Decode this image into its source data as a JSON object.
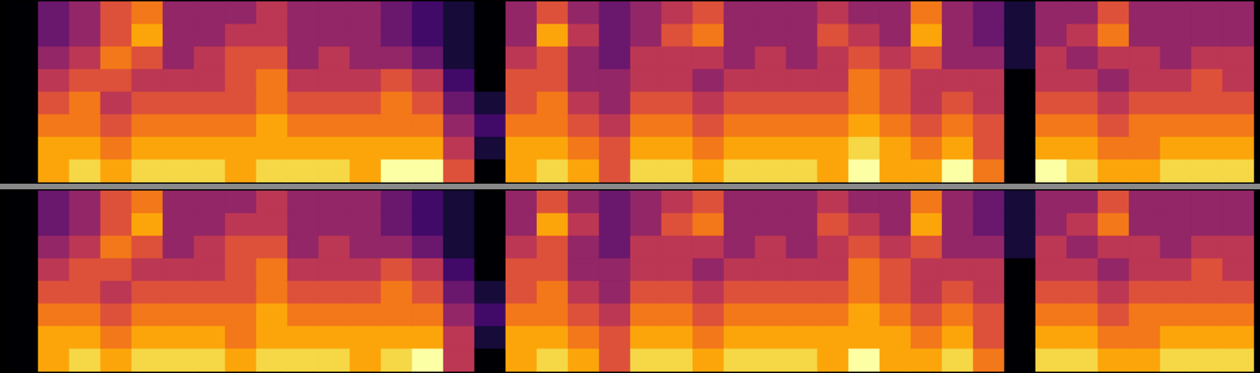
{
  "chart_data": [
    {
      "type": "heatmap",
      "color": "inferno",
      "color_range": [
        0,
        10
      ],
      "tick_labels": false,
      "cells": [
        [
          0,
          0,
          0,
          0,
          0,
          0,
          0,
          0
        ],
        [
          3,
          3,
          4,
          5,
          6,
          7,
          8,
          8
        ],
        [
          4,
          4,
          5,
          6,
          7,
          7,
          8,
          9
        ],
        [
          6,
          6,
          7,
          6,
          5,
          6,
          7,
          8
        ],
        [
          7,
          8,
          6,
          5,
          6,
          7,
          8,
          9
        ],
        [
          4,
          4,
          4,
          5,
          6,
          7,
          8,
          9
        ],
        [
          4,
          4,
          5,
          5,
          6,
          7,
          8,
          9
        ],
        [
          4,
          5,
          6,
          6,
          6,
          7,
          8,
          8
        ],
        [
          5,
          5,
          6,
          7,
          7,
          8,
          8,
          9
        ],
        [
          4,
          4,
          4,
          5,
          6,
          7,
          8,
          9
        ],
        [
          4,
          4,
          5,
          5,
          6,
          7,
          8,
          9
        ],
        [
          4,
          4,
          4,
          5,
          6,
          7,
          8,
          8
        ],
        [
          3,
          3,
          4,
          6,
          7,
          7,
          8,
          10
        ],
        [
          2,
          2,
          3,
          5,
          6,
          7,
          8,
          10
        ],
        [
          1,
          1,
          1,
          2,
          3,
          4,
          5,
          6
        ],
        [
          0,
          0,
          0,
          0,
          1,
          2,
          1,
          0
        ],
        [
          4,
          4,
          5,
          6,
          6,
          7,
          8,
          8
        ],
        [
          6,
          8,
          6,
          6,
          7,
          7,
          8,
          9
        ],
        [
          4,
          5,
          4,
          4,
          5,
          6,
          7,
          8
        ],
        [
          3,
          3,
          3,
          4,
          4,
          5,
          6,
          6
        ],
        [
          4,
          4,
          5,
          5,
          6,
          7,
          8,
          9
        ],
        [
          5,
          6,
          5,
          5,
          6,
          7,
          8,
          9
        ],
        [
          6,
          7,
          5,
          4,
          5,
          6,
          7,
          8
        ],
        [
          4,
          4,
          4,
          5,
          6,
          7,
          8,
          9
        ],
        [
          4,
          4,
          5,
          5,
          6,
          7,
          8,
          9
        ],
        [
          4,
          4,
          4,
          5,
          6,
          7,
          8,
          9
        ],
        [
          5,
          6,
          5,
          5,
          6,
          7,
          8,
          8
        ],
        [
          4,
          5,
          6,
          7,
          7,
          8,
          9,
          10
        ],
        [
          4,
          4,
          5,
          6,
          6,
          7,
          8,
          8
        ],
        [
          7,
          8,
          6,
          5,
          5,
          6,
          7,
          8
        ],
        [
          4,
          4,
          4,
          5,
          6,
          7,
          8,
          10
        ],
        [
          3,
          3,
          4,
          5,
          5,
          6,
          6,
          7
        ],
        [
          1,
          1,
          1,
          0,
          0,
          0,
          0,
          0
        ],
        [
          4,
          4,
          5,
          5,
          6,
          7,
          8,
          10
        ],
        [
          4,
          5,
          4,
          5,
          6,
          7,
          8,
          9
        ],
        [
          6,
          7,
          5,
          4,
          5,
          6,
          7,
          8
        ],
        [
          4,
          4,
          5,
          5,
          6,
          7,
          7,
          8
        ],
        [
          4,
          4,
          4,
          5,
          6,
          7,
          8,
          9
        ],
        [
          4,
          4,
          5,
          6,
          6,
          7,
          8,
          9
        ],
        [
          4,
          4,
          5,
          5,
          6,
          7,
          8,
          9
        ]
      ]
    },
    {
      "type": "heatmap",
      "color": "inferno",
      "color_range": [
        0,
        10
      ],
      "tick_labels": false,
      "cells": [
        [
          0,
          0,
          0,
          0,
          0,
          0,
          0,
          0
        ],
        [
          3,
          3,
          4,
          5,
          6,
          7,
          8,
          8
        ],
        [
          4,
          4,
          5,
          6,
          6,
          7,
          8,
          9
        ],
        [
          6,
          6,
          7,
          6,
          5,
          6,
          7,
          8
        ],
        [
          7,
          8,
          6,
          5,
          6,
          7,
          8,
          9
        ],
        [
          4,
          4,
          4,
          5,
          6,
          7,
          8,
          9
        ],
        [
          4,
          4,
          5,
          5,
          6,
          7,
          8,
          9
        ],
        [
          4,
          5,
          6,
          6,
          6,
          7,
          7,
          8
        ],
        [
          5,
          5,
          6,
          7,
          7,
          8,
          8,
          9
        ],
        [
          4,
          4,
          4,
          5,
          6,
          7,
          8,
          9
        ],
        [
          4,
          4,
          5,
          5,
          6,
          7,
          8,
          9
        ],
        [
          4,
          4,
          4,
          5,
          6,
          7,
          8,
          8
        ],
        [
          3,
          3,
          4,
          6,
          7,
          7,
          8,
          9
        ],
        [
          2,
          2,
          3,
          5,
          6,
          7,
          8,
          10
        ],
        [
          1,
          1,
          1,
          2,
          3,
          4,
          5,
          5
        ],
        [
          0,
          0,
          0,
          0,
          1,
          2,
          1,
          0
        ],
        [
          4,
          4,
          5,
          6,
          6,
          7,
          8,
          8
        ],
        [
          6,
          8,
          6,
          6,
          7,
          7,
          8,
          9
        ],
        [
          4,
          5,
          4,
          4,
          5,
          6,
          7,
          8
        ],
        [
          3,
          3,
          3,
          4,
          4,
          5,
          6,
          6
        ],
        [
          4,
          4,
          5,
          5,
          6,
          7,
          8,
          9
        ],
        [
          5,
          6,
          5,
          5,
          6,
          7,
          8,
          9
        ],
        [
          6,
          7,
          5,
          4,
          5,
          6,
          7,
          8
        ],
        [
          4,
          4,
          4,
          5,
          6,
          7,
          8,
          9
        ],
        [
          4,
          4,
          5,
          5,
          6,
          7,
          8,
          9
        ],
        [
          4,
          4,
          4,
          5,
          6,
          7,
          8,
          9
        ],
        [
          5,
          6,
          5,
          5,
          6,
          7,
          8,
          8
        ],
        [
          4,
          5,
          6,
          7,
          7,
          8,
          8,
          10
        ],
        [
          4,
          4,
          5,
          6,
          6,
          7,
          8,
          8
        ],
        [
          7,
          8,
          6,
          5,
          5,
          6,
          7,
          8
        ],
        [
          4,
          4,
          4,
          5,
          6,
          7,
          8,
          9
        ],
        [
          3,
          3,
          4,
          5,
          5,
          6,
          6,
          7
        ],
        [
          1,
          1,
          1,
          0,
          0,
          0,
          0,
          0
        ],
        [
          4,
          4,
          5,
          5,
          6,
          7,
          8,
          9
        ],
        [
          4,
          5,
          4,
          5,
          6,
          7,
          8,
          9
        ],
        [
          6,
          7,
          5,
          4,
          5,
          6,
          7,
          8
        ],
        [
          4,
          4,
          5,
          5,
          6,
          7,
          7,
          8
        ],
        [
          4,
          4,
          4,
          5,
          6,
          7,
          8,
          9
        ],
        [
          4,
          4,
          5,
          6,
          6,
          7,
          8,
          9
        ],
        [
          4,
          4,
          5,
          5,
          6,
          7,
          8,
          9
        ]
      ]
    }
  ]
}
